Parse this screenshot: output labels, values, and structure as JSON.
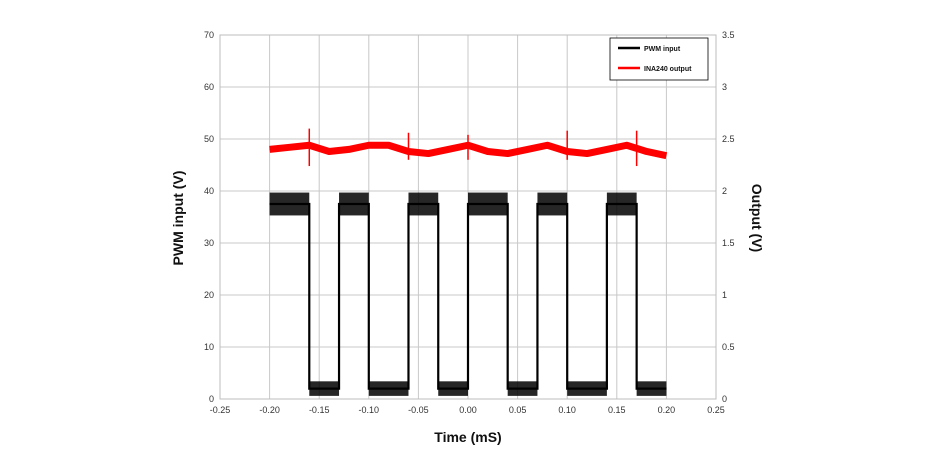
{
  "chart_data": {
    "type": "line",
    "xlabel": "Time (mS)",
    "ylabel": "PWM input (V)",
    "y2label": "Output (V)",
    "xlim": [
      -0.25,
      0.25
    ],
    "ylim": [
      0,
      70
    ],
    "y2lim": [
      0,
      3.5
    ],
    "grid": true,
    "legend_position": "top-right",
    "xticks": [
      "-0.25",
      "-0.20",
      "-0.15",
      "-0.10",
      "-0.05",
      "0.00",
      "0.05",
      "0.10",
      "0.15",
      "0.20",
      "0.25"
    ],
    "yticks": [
      "0",
      "10",
      "20",
      "30",
      "40",
      "50",
      "60",
      "70"
    ],
    "y2ticks": [
      "0",
      "0.5",
      "1",
      "1.5",
      "2",
      "2.5",
      "3",
      "3.5"
    ],
    "series": [
      {
        "name": "PWM input",
        "axis": "left",
        "color": "#000000",
        "x": [
          -0.2,
          -0.16,
          -0.16,
          -0.13,
          -0.13,
          -0.1,
          -0.1,
          -0.06,
          -0.06,
          -0.03,
          -0.03,
          0.0,
          0.0,
          0.04,
          0.04,
          0.07,
          0.07,
          0.1,
          0.1,
          0.14,
          0.14,
          0.17,
          0.17,
          0.2
        ],
        "y": [
          37.5,
          37.5,
          2,
          2,
          37.5,
          37.5,
          2,
          2,
          37.5,
          37.5,
          2,
          2,
          37.5,
          37.5,
          2,
          2,
          37.5,
          37.5,
          2,
          2,
          37.5,
          37.5,
          2,
          2
        ]
      },
      {
        "name": "INA240 output",
        "axis": "right",
        "color": "#ff0000",
        "x": [
          -0.2,
          -0.18,
          -0.16,
          -0.14,
          -0.12,
          -0.1,
          -0.08,
          -0.06,
          -0.04,
          -0.02,
          0.0,
          0.02,
          0.04,
          0.06,
          0.08,
          0.1,
          0.12,
          0.14,
          0.16,
          0.18,
          0.2
        ],
        "y": [
          2.4,
          2.42,
          2.44,
          2.38,
          2.4,
          2.44,
          2.44,
          2.38,
          2.36,
          2.4,
          2.44,
          2.38,
          2.36,
          2.4,
          2.44,
          2.38,
          2.36,
          2.4,
          2.44,
          2.38,
          2.34
        ],
        "spikes_x": [
          -0.16,
          -0.06,
          0.0,
          0.1,
          0.17
        ],
        "spikes_y": [
          [
            2.24,
            2.6
          ],
          [
            2.3,
            2.56
          ],
          [
            2.3,
            2.54
          ],
          [
            2.3,
            2.58
          ],
          [
            2.24,
            2.58
          ]
        ]
      }
    ]
  }
}
